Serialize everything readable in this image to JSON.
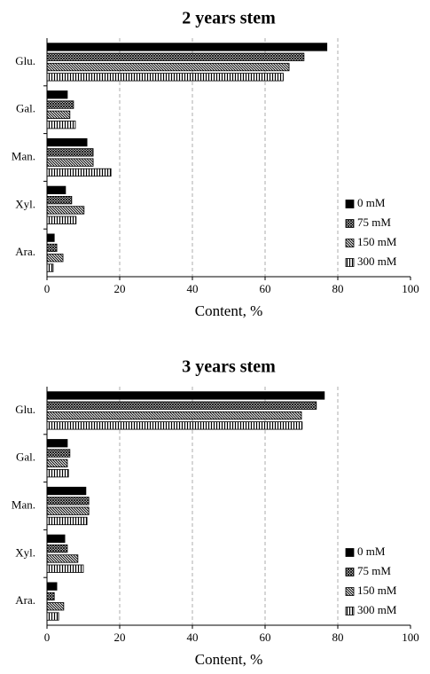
{
  "chart_data": [
    {
      "type": "bar",
      "orientation": "horizontal",
      "title": "2 years stem",
      "x_label": "Content, %",
      "categories": [
        "Glu.",
        "Gal.",
        "Man.",
        "Xyl.",
        "Ara."
      ],
      "series": [
        {
          "name": "0 mM",
          "color": "#000000",
          "pattern": "solid",
          "values": [
            77,
            5.6,
            11,
            5.1,
            2
          ]
        },
        {
          "name": "75 mM",
          "color": "#000000",
          "pattern": "crosshatch",
          "values": [
            70.7,
            7.3,
            12.7,
            6.8,
            2.7
          ]
        },
        {
          "name": "150 mM",
          "color": "#000000",
          "pattern": "diagonal",
          "values": [
            66.6,
            6.3,
            12.7,
            10.2,
            4.4
          ]
        },
        {
          "name": "300 mM",
          "color": "#000000",
          "pattern": "vertical",
          "values": [
            65,
            7.8,
            17.6,
            8,
            1.7
          ]
        }
      ],
      "xlim": [
        0,
        100
      ],
      "xticks": [
        0,
        20,
        40,
        60,
        80,
        100
      ],
      "grid": true,
      "legend": "lower right"
    },
    {
      "type": "bar",
      "orientation": "horizontal",
      "title": "3 years stem",
      "x_label": "Content, %",
      "categories": [
        "Glu.",
        "Gal.",
        "Man.",
        "Xyl.",
        "Ara."
      ],
      "series": [
        {
          "name": "0 mM",
          "color": "#000000",
          "pattern": "solid",
          "values": [
            76.3,
            5.6,
            10.7,
            4.9,
            2.7
          ]
        },
        {
          "name": "75 mM",
          "color": "#000000",
          "pattern": "crosshatch",
          "values": [
            74.1,
            6.3,
            11.5,
            5.6,
            2
          ]
        },
        {
          "name": "150 mM",
          "color": "#000000",
          "pattern": "diagonal",
          "values": [
            70,
            5.6,
            11.5,
            8.5,
            4.6
          ]
        },
        {
          "name": "300 mM",
          "color": "#000000",
          "pattern": "vertical",
          "values": [
            70.2,
            5.9,
            11,
            10,
            3.2
          ]
        }
      ],
      "xlim": [
        0,
        100
      ],
      "xticks": [
        0,
        20,
        40,
        60,
        80,
        100
      ],
      "grid": true,
      "legend": "lower right"
    }
  ]
}
